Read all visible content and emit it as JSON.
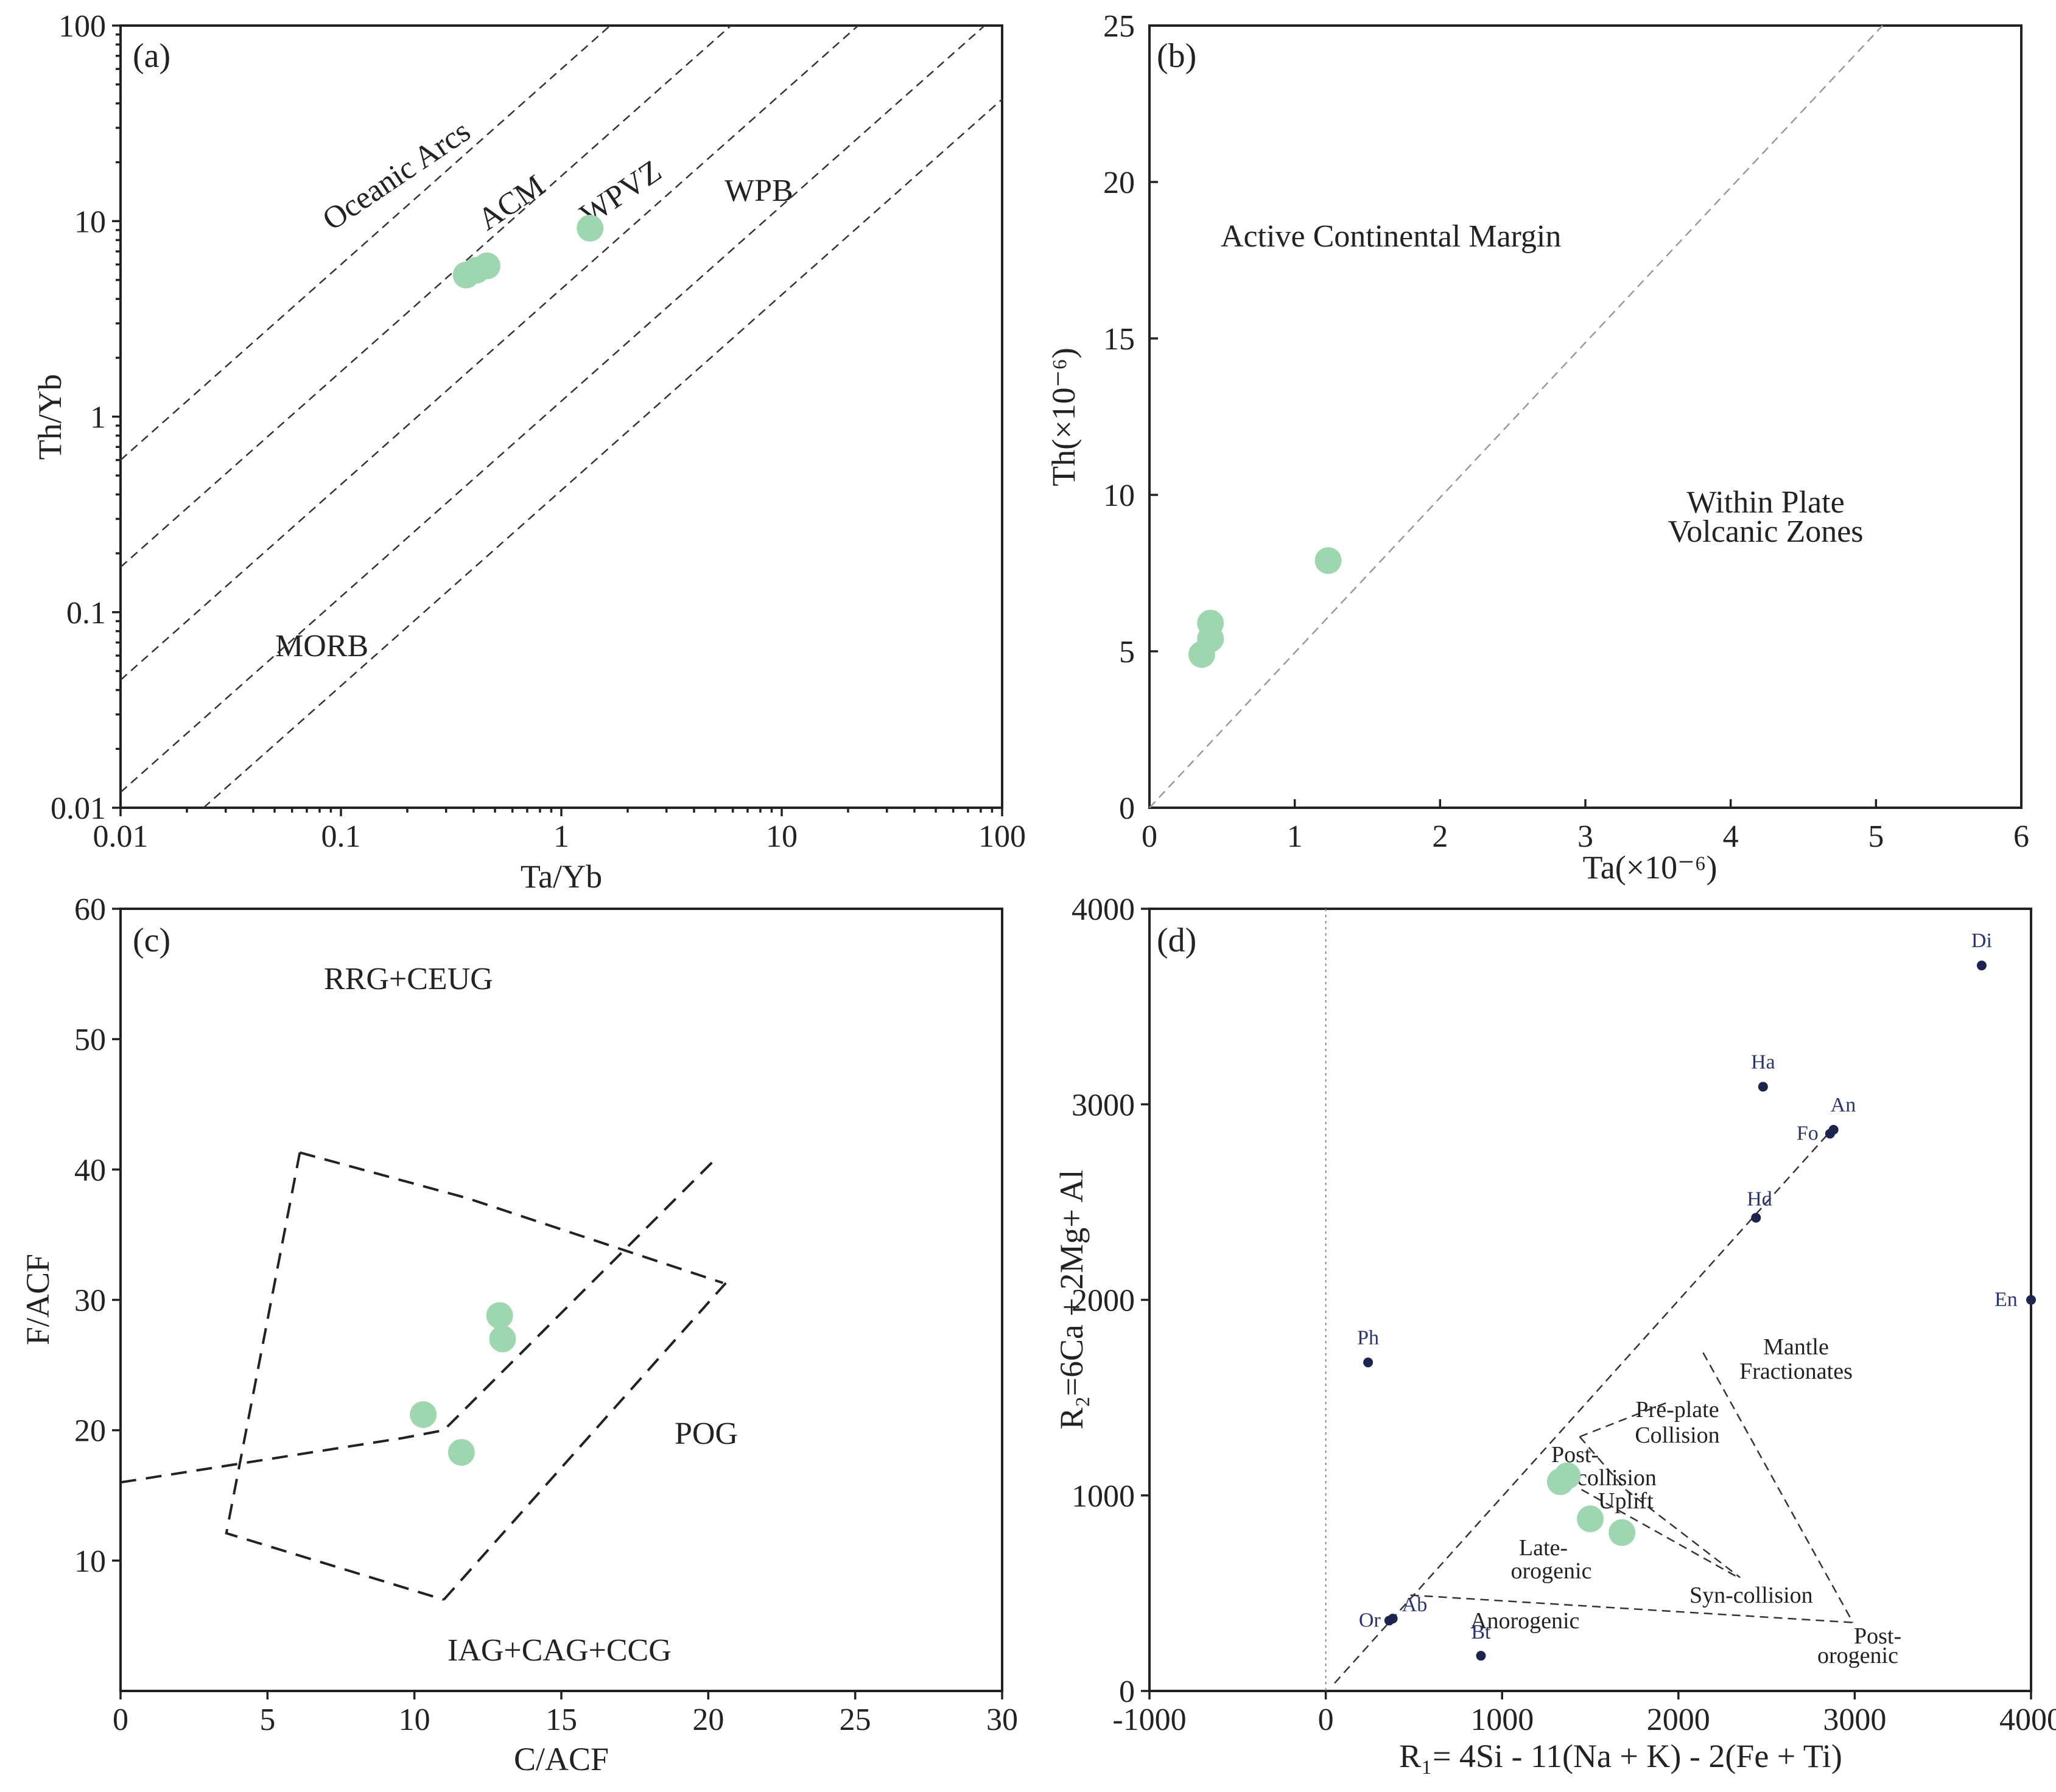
{
  "colors": {
    "sample": "#9ed6b0",
    "mineral": "#1c2450",
    "frame": "#222222"
  },
  "panels": {
    "a": {
      "label": "(a)",
      "xlabel": "Ta/Yb",
      "ylabel": "Th/Yb",
      "x_ticks": [
        "0.01",
        "0.1",
        "1",
        "10",
        "100"
      ],
      "y_ticks": [
        "0.01",
        "0.1",
        "1",
        "10",
        "100"
      ],
      "regions": {
        "oceanic_arcs": "Oceanic Arcs",
        "acm": "ACM",
        "wpvz": "WPVZ",
        "wpb": "WPB",
        "morb": "MORB"
      }
    },
    "b": {
      "label": "(b)",
      "xlabel": "Ta(×10⁻⁶)",
      "ylabel": "Th(×10⁻⁶)",
      "x_ticks": [
        "0",
        "1",
        "2",
        "3",
        "4",
        "5",
        "6"
      ],
      "y_ticks": [
        "0",
        "5",
        "10",
        "15",
        "20",
        "25"
      ],
      "regions": {
        "acm": "Active Continental Margin",
        "wpvz_1": "Within Plate",
        "wpvz_2": "Volcanic Zones"
      }
    },
    "c": {
      "label": "(c)",
      "xlabel": "C/ACF",
      "ylabel": "F/ACF",
      "x_ticks": [
        "0",
        "5",
        "10",
        "15",
        "20",
        "25",
        "30"
      ],
      "y_ticks": [
        "10",
        "20",
        "30",
        "40",
        "50",
        "60"
      ],
      "regions": {
        "rrg": "RRG+CEUG",
        "pog": "POG",
        "iag": "IAG+CAG+CCG"
      }
    },
    "d": {
      "label": "(d)",
      "xlabel": "R₁= 4Si - 11(Na + K) - 2(Fe + Ti)",
      "ylabel": "R₂=6Ca + 2Mg+ Al",
      "x_ticks": [
        "-1000",
        "0",
        "1000",
        "2000",
        "3000",
        "4000"
      ],
      "y_ticks": [
        "0",
        "1000",
        "2000",
        "3000",
        "4000"
      ],
      "regions": {
        "mantle_1": "Mantle",
        "mantle_2": "Fractionates",
        "preplate_1": "Pre-plate",
        "preplate_2": "Collision",
        "post_1": "Post-",
        "post_2": "collision",
        "uplift": "Uplift",
        "late_1": "Late-",
        "late_2": "orogenic",
        "syn": "Syn-collision",
        "anorogenic": "Anorogenic",
        "postorog_1": "Post-",
        "postorog_2": "orogenic"
      },
      "minerals": [
        "Di",
        "Ha",
        "An",
        "Fo",
        "Hd",
        "En",
        "Ph",
        "Bt",
        "Or",
        "Ab"
      ]
    }
  },
  "chart_data": [
    {
      "type": "scatter",
      "panel": "a",
      "xlabel": "Ta/Yb",
      "ylabel": "Th/Yb",
      "xscale": "log",
      "yscale": "log",
      "xlim": [
        0.01,
        100
      ],
      "ylim": [
        0.01,
        100
      ],
      "regions": [
        "Oceanic Arcs",
        "ACM",
        "WPVZ",
        "WPB",
        "MORB"
      ],
      "points": [
        {
          "x": 0.37,
          "y": 5.3
        },
        {
          "x": 0.41,
          "y": 5.6
        },
        {
          "x": 0.46,
          "y": 5.9
        },
        {
          "x": 1.35,
          "y": 9.2
        }
      ]
    },
    {
      "type": "scatter",
      "panel": "b",
      "xlabel": "Ta(×10⁻⁶)",
      "ylabel": "Th(×10⁻⁶)",
      "xlim": [
        0,
        6
      ],
      "ylim": [
        0,
        25
      ],
      "regions": [
        "Active Continental Margin",
        "Within Plate Volcanic Zones"
      ],
      "points": [
        {
          "x": 0.36,
          "y": 4.9
        },
        {
          "x": 0.42,
          "y": 5.4
        },
        {
          "x": 0.42,
          "y": 5.9
        },
        {
          "x": 1.23,
          "y": 7.9
        }
      ]
    },
    {
      "type": "scatter",
      "panel": "c",
      "xlabel": "C/ACF",
      "ylabel": "F/ACF",
      "xlim": [
        0,
        30
      ],
      "ylim": [
        0,
        60
      ],
      "regions": [
        "RRG+CEUG",
        "POG",
        "IAG+CAG+CCG"
      ],
      "points": [
        {
          "x": 12.9,
          "y": 28.8
        },
        {
          "x": 13.0,
          "y": 27.0
        },
        {
          "x": 10.3,
          "y": 21.2
        },
        {
          "x": 11.6,
          "y": 18.3
        }
      ]
    },
    {
      "type": "scatter",
      "panel": "d",
      "xlabel": "R₁= 4Si - 11(Na + K) - 2(Fe + Ti)",
      "ylabel": "R₂=6Ca + 2Mg+ Al",
      "xlim": [
        -1000,
        4000
      ],
      "ylim": [
        0,
        4000
      ],
      "regions": [
        "Mantle Fractionates",
        "Pre-plate Collision",
        "Post-collision Uplift",
        "Late-orogenic",
        "Syn-collision",
        "Anorogenic",
        "Post-orogenic"
      ],
      "points": [
        {
          "x": 1330,
          "y": 1070
        },
        {
          "x": 1370,
          "y": 1100
        },
        {
          "x": 1500,
          "y": 880
        },
        {
          "x": 1680,
          "y": 810
        }
      ],
      "minerals": [
        {
          "name": "Di",
          "x": 3720,
          "y": 3710
        },
        {
          "name": "Ha",
          "x": 2480,
          "y": 3090
        },
        {
          "name": "An",
          "x": 2880,
          "y": 2870
        },
        {
          "name": "Fo",
          "x": 2860,
          "y": 2850
        },
        {
          "name": "Hd",
          "x": 2440,
          "y": 2420
        },
        {
          "name": "En",
          "x": 4000,
          "y": 2000
        },
        {
          "name": "Ph",
          "x": 240,
          "y": 1680
        },
        {
          "name": "Bt",
          "x": 880,
          "y": 180
        },
        {
          "name": "Or",
          "x": 360,
          "y": 360
        },
        {
          "name": "Ab",
          "x": 380,
          "y": 370
        }
      ]
    }
  ]
}
